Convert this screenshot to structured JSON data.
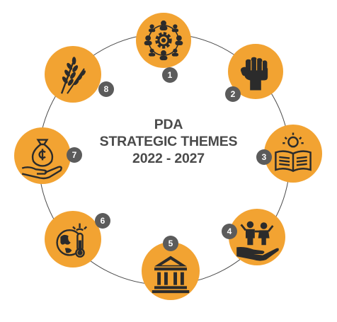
{
  "title": {
    "line1": "PDA",
    "line2": "STRATEGIC THEMES",
    "line3": "2022 - 2027"
  },
  "colors": {
    "accent": "#F2A332",
    "ring": "#4a4a4a",
    "icon": "#2b2b2b",
    "badge": "#5b5b5b",
    "text": "#4a4a4a"
  },
  "themes": [
    {
      "number": "1",
      "icon": "gear-people-icon"
    },
    {
      "number": "2",
      "icon": "raised-fist-icon"
    },
    {
      "number": "3",
      "icon": "open-book-lightbulb-icon"
    },
    {
      "number": "4",
      "icon": "hand-children-icon"
    },
    {
      "number": "5",
      "icon": "government-building-icon"
    },
    {
      "number": "6",
      "icon": "globe-thermometer-icon"
    },
    {
      "number": "7",
      "icon": "hand-money-bag-icon"
    },
    {
      "number": "8",
      "icon": "wheat-icon"
    }
  ]
}
